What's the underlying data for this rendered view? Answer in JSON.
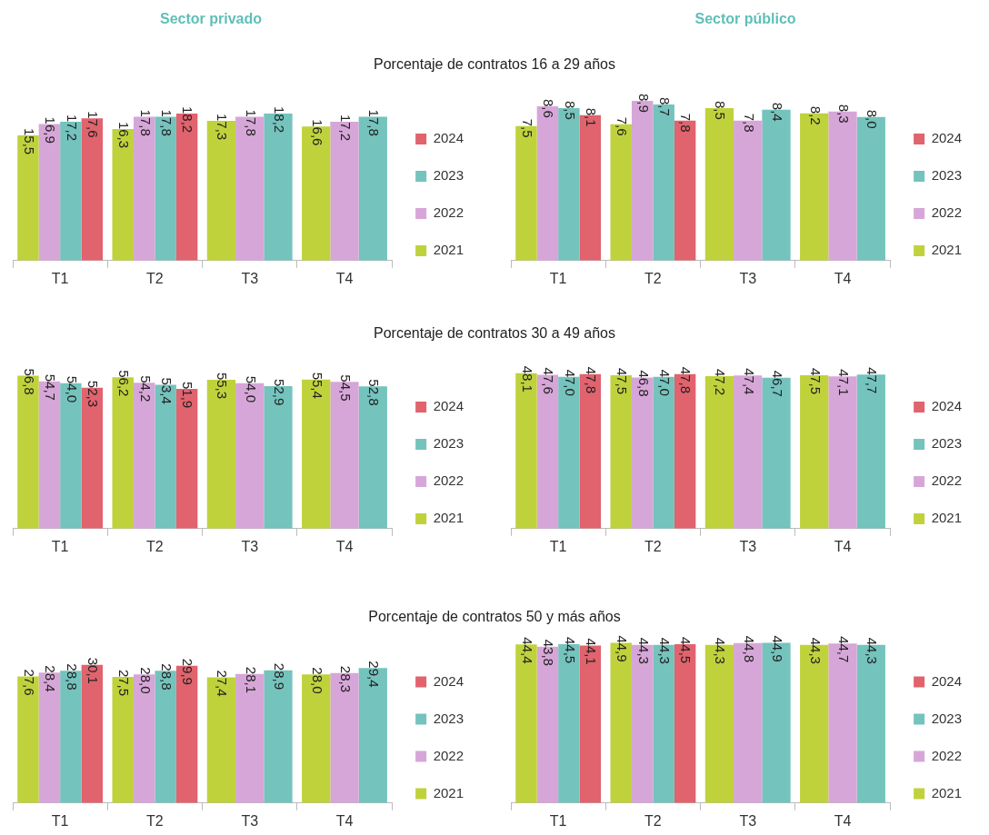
{
  "chart_data": [
    {
      "type": "bar",
      "subtitle": "Sector privado",
      "title": "Porcentaje de contratos 16 a 29 años",
      "categories": [
        "T1",
        "T2",
        "T3",
        "T4"
      ],
      "tick_labels": "x",
      "legend": "right",
      "series": [
        {
          "name": "2021",
          "color": "#bfd23c",
          "values": [
            15.5,
            16.3,
            17.3,
            16.6
          ],
          "value_labels": [
            "15,5",
            "16,3",
            "17,3",
            "16,6"
          ]
        },
        {
          "name": "2022",
          "color": "#d7a6d8",
          "values": [
            16.9,
            17.8,
            17.8,
            17.2
          ],
          "value_labels": [
            "16,9",
            "17,8",
            "17,8",
            "17,2"
          ]
        },
        {
          "name": "2023",
          "color": "#74c3bd",
          "values": [
            17.2,
            17.8,
            18.2,
            17.8
          ],
          "value_labels": [
            "17,2",
            "17,8",
            "18,2",
            "17,8"
          ]
        },
        {
          "name": "2024",
          "color": "#e0636e",
          "values": [
            17.6,
            18.2,
            null,
            null
          ],
          "value_labels": [
            "17,6",
            "18,2",
            null,
            null
          ]
        }
      ]
    },
    {
      "type": "bar",
      "subtitle": "Sector público",
      "categories": [
        "T1",
        "T2",
        "T3",
        "T4"
      ],
      "tick_labels": "x",
      "legend": "right",
      "series": [
        {
          "name": "2021",
          "color": "#bfd23c",
          "values": [
            7.5,
            7.6,
            8.5,
            8.2
          ],
          "value_labels": [
            "7,5",
            "7,6",
            "8,5",
            "8,2"
          ]
        },
        {
          "name": "2022",
          "color": "#d7a6d8",
          "values": [
            8.6,
            8.9,
            7.8,
            8.3
          ],
          "value_labels": [
            "8,6",
            "8,9",
            "7,8",
            "8,3"
          ]
        },
        {
          "name": "2023",
          "color": "#74c3bd",
          "values": [
            8.5,
            8.7,
            8.4,
            8.0
          ],
          "value_labels": [
            "8,5",
            "8,7",
            "8,4",
            "8,0"
          ]
        },
        {
          "name": "2024",
          "color": "#e0636e",
          "values": [
            8.1,
            7.8,
            null,
            null
          ],
          "value_labels": [
            "8,1",
            "7,8",
            null,
            null
          ]
        }
      ]
    },
    {
      "type": "bar",
      "title": "Porcentaje de contratos 30 a 49 años",
      "categories": [
        "T1",
        "T2",
        "T3",
        "T4"
      ],
      "tick_labels": "x",
      "legend": "right",
      "series": [
        {
          "name": "2021",
          "color": "#bfd23c",
          "values": [
            56.8,
            56.2,
            55.3,
            55.4
          ],
          "value_labels": [
            "56,8",
            "56,2",
            "55,3",
            "55,4"
          ]
        },
        {
          "name": "2022",
          "color": "#d7a6d8",
          "values": [
            54.7,
            54.2,
            54.0,
            54.5
          ],
          "value_labels": [
            "54,7",
            "54,2",
            "54,0",
            "54,5"
          ]
        },
        {
          "name": "2023",
          "color": "#74c3bd",
          "values": [
            54.0,
            53.4,
            52.9,
            52.8
          ],
          "value_labels": [
            "54,0",
            "53,4",
            "52,9",
            "52,8"
          ]
        },
        {
          "name": "2024",
          "color": "#e0636e",
          "values": [
            52.3,
            51.9,
            null,
            null
          ],
          "value_labels": [
            "52,3",
            "51,9",
            null,
            null
          ]
        }
      ]
    },
    {
      "type": "bar",
      "categories": [
        "T1",
        "T2",
        "T3",
        "T4"
      ],
      "tick_labels": "x",
      "legend": "right",
      "series": [
        {
          "name": "2021",
          "color": "#bfd23c",
          "values": [
            48.1,
            47.5,
            47.2,
            47.5
          ],
          "value_labels": [
            "48,1",
            "47,5",
            "47,2",
            "47,5"
          ]
        },
        {
          "name": "2022",
          "color": "#d7a6d8",
          "values": [
            47.6,
            46.8,
            47.4,
            47.1
          ],
          "value_labels": [
            "47,6",
            "46,8",
            "47,4",
            "47,1"
          ]
        },
        {
          "name": "2023",
          "color": "#74c3bd",
          "values": [
            47.0,
            47.0,
            46.7,
            47.7
          ],
          "value_labels": [
            "47,0",
            "47,0",
            "46,7",
            "47,7"
          ]
        },
        {
          "name": "2024",
          "color": "#e0636e",
          "values": [
            47.8,
            47.8,
            null,
            null
          ],
          "value_labels": [
            "47,8",
            "47,8",
            null,
            null
          ]
        }
      ]
    },
    {
      "type": "bar",
      "title": "Porcentaje de contratos 50 y más años",
      "categories": [
        "T1",
        "T2",
        "T3",
        "T4"
      ],
      "tick_labels": "x",
      "legend": "right",
      "series": [
        {
          "name": "2021",
          "color": "#bfd23c",
          "values": [
            27.6,
            27.5,
            27.4,
            28.0
          ],
          "value_labels": [
            "27,6",
            "27,5",
            "27,4",
            "28,0"
          ]
        },
        {
          "name": "2022",
          "color": "#d7a6d8",
          "values": [
            28.4,
            28.0,
            28.1,
            28.3
          ],
          "value_labels": [
            "28,4",
            "28,0",
            "28,1",
            "28,3"
          ]
        },
        {
          "name": "2023",
          "color": "#74c3bd",
          "values": [
            28.8,
            28.8,
            28.9,
            29.4
          ],
          "value_labels": [
            "28,8",
            "28,8",
            "28,9",
            "29,4"
          ]
        },
        {
          "name": "2024",
          "color": "#e0636e",
          "values": [
            30.1,
            29.9,
            null,
            null
          ],
          "value_labels": [
            "30,1",
            "29,9",
            null,
            null
          ]
        }
      ]
    },
    {
      "type": "bar",
      "categories": [
        "T1",
        "T2",
        "T3",
        "T4"
      ],
      "tick_labels": "x",
      "legend": "right",
      "series": [
        {
          "name": "2021",
          "color": "#bfd23c",
          "values": [
            44.4,
            44.9,
            44.3,
            44.3
          ],
          "value_labels": [
            "44,4",
            "44,9",
            "44,3",
            "44,3"
          ]
        },
        {
          "name": "2022",
          "color": "#d7a6d8",
          "values": [
            43.8,
            44.3,
            44.8,
            44.7
          ],
          "value_labels": [
            "43,8",
            "44,3",
            "44,8",
            "44,7"
          ]
        },
        {
          "name": "2023",
          "color": "#74c3bd",
          "values": [
            44.5,
            44.3,
            44.9,
            44.3
          ],
          "value_labels": [
            "44,5",
            "44,3",
            "44,9",
            "44,3"
          ]
        },
        {
          "name": "2024",
          "color": "#e0636e",
          "values": [
            44.1,
            44.5,
            null,
            null
          ],
          "value_labels": [
            "44,1",
            "44,5",
            null,
            null
          ]
        }
      ]
    }
  ]
}
